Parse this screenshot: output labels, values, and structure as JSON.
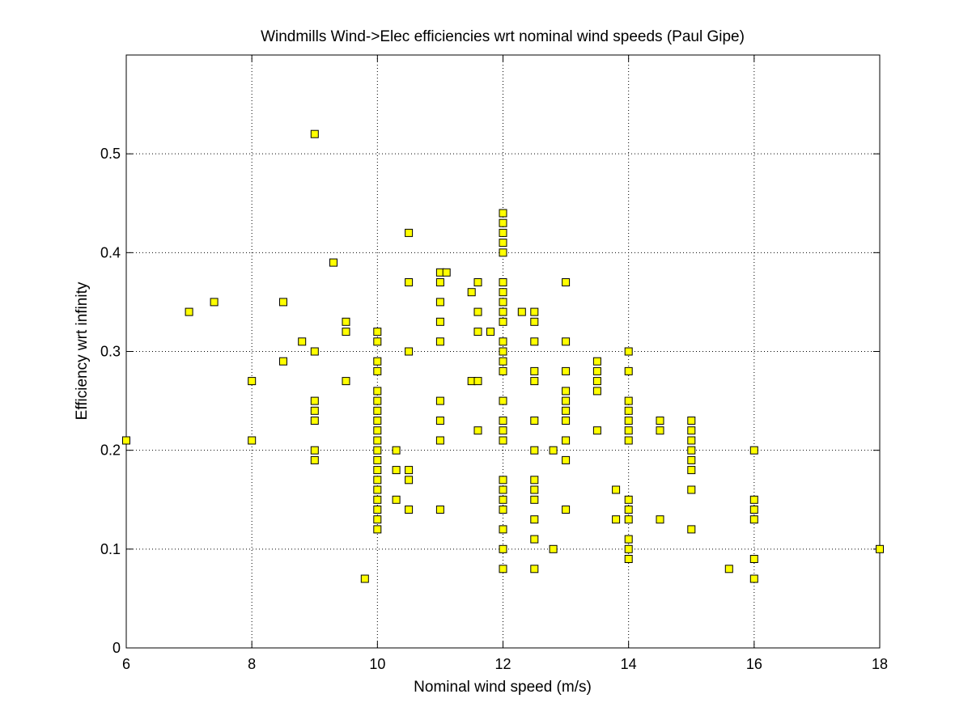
{
  "chart_data": {
    "type": "scatter",
    "title": "Windmills Wind->Elec efficiencies wrt nominal wind speeds (Paul Gipe)",
    "xlabel": "Nominal wind speed (m/s)",
    "ylabel": "Efficiency wrt infinity",
    "xlim": [
      6,
      18
    ],
    "ylim": [
      0,
      0.6
    ],
    "xticks": [
      "6",
      "8",
      "10",
      "12",
      "14",
      "16",
      "18"
    ],
    "yticks": [
      "0",
      "0.1",
      "0.2",
      "0.3",
      "0.4",
      "0.5"
    ],
    "grid": true,
    "marker": "square",
    "marker_color": "#ffff00",
    "marker_edge": "#000000",
    "points": [
      [
        6,
        0.21
      ],
      [
        7,
        0.34
      ],
      [
        7.4,
        0.35
      ],
      [
        8,
        0.27
      ],
      [
        8,
        0.21
      ],
      [
        8.5,
        0.35
      ],
      [
        8.5,
        0.29
      ],
      [
        8.8,
        0.31
      ],
      [
        9,
        0.52
      ],
      [
        9,
        0.3
      ],
      [
        9,
        0.25
      ],
      [
        9,
        0.24
      ],
      [
        9,
        0.23
      ],
      [
        9,
        0.2
      ],
      [
        9,
        0.19
      ],
      [
        9.3,
        0.39
      ],
      [
        9.5,
        0.33
      ],
      [
        9.5,
        0.32
      ],
      [
        9.5,
        0.27
      ],
      [
        9.8,
        0.07
      ],
      [
        10,
        0.32
      ],
      [
        10,
        0.31
      ],
      [
        10,
        0.29
      ],
      [
        10,
        0.28
      ],
      [
        10,
        0.26
      ],
      [
        10,
        0.25
      ],
      [
        10,
        0.24
      ],
      [
        10,
        0.23
      ],
      [
        10,
        0.22
      ],
      [
        10,
        0.21
      ],
      [
        10,
        0.2
      ],
      [
        10,
        0.19
      ],
      [
        10,
        0.18
      ],
      [
        10,
        0.17
      ],
      [
        10,
        0.16
      ],
      [
        10,
        0.15
      ],
      [
        10,
        0.14
      ],
      [
        10,
        0.13
      ],
      [
        10,
        0.12
      ],
      [
        10.3,
        0.2
      ],
      [
        10.3,
        0.18
      ],
      [
        10.3,
        0.15
      ],
      [
        10.5,
        0.42
      ],
      [
        10.5,
        0.37
      ],
      [
        10.5,
        0.3
      ],
      [
        10.5,
        0.18
      ],
      [
        10.5,
        0.17
      ],
      [
        10.5,
        0.14
      ],
      [
        11,
        0.38
      ],
      [
        11,
        0.37
      ],
      [
        11,
        0.35
      ],
      [
        11,
        0.33
      ],
      [
        11,
        0.31
      ],
      [
        11,
        0.25
      ],
      [
        11,
        0.23
      ],
      [
        11,
        0.21
      ],
      [
        11,
        0.14
      ],
      [
        11.1,
        0.38
      ],
      [
        11.5,
        0.36
      ],
      [
        11.5,
        0.27
      ],
      [
        11.6,
        0.37
      ],
      [
        11.6,
        0.34
      ],
      [
        11.6,
        0.32
      ],
      [
        11.6,
        0.27
      ],
      [
        11.6,
        0.22
      ],
      [
        11.8,
        0.32
      ],
      [
        12,
        0.44
      ],
      [
        12,
        0.43
      ],
      [
        12,
        0.42
      ],
      [
        12,
        0.41
      ],
      [
        12,
        0.4
      ],
      [
        12,
        0.37
      ],
      [
        12,
        0.36
      ],
      [
        12,
        0.35
      ],
      [
        12,
        0.34
      ],
      [
        12,
        0.33
      ],
      [
        12,
        0.31
      ],
      [
        12,
        0.3
      ],
      [
        12,
        0.29
      ],
      [
        12,
        0.28
      ],
      [
        12,
        0.25
      ],
      [
        12,
        0.23
      ],
      [
        12,
        0.22
      ],
      [
        12,
        0.21
      ],
      [
        12,
        0.17
      ],
      [
        12,
        0.16
      ],
      [
        12,
        0.15
      ],
      [
        12,
        0.14
      ],
      [
        12,
        0.12
      ],
      [
        12,
        0.1
      ],
      [
        12,
        0.08
      ],
      [
        12.3,
        0.34
      ],
      [
        12.5,
        0.34
      ],
      [
        12.5,
        0.33
      ],
      [
        12.5,
        0.31
      ],
      [
        12.5,
        0.28
      ],
      [
        12.5,
        0.27
      ],
      [
        12.5,
        0.23
      ],
      [
        12.5,
        0.2
      ],
      [
        12.5,
        0.17
      ],
      [
        12.5,
        0.16
      ],
      [
        12.5,
        0.15
      ],
      [
        12.5,
        0.13
      ],
      [
        12.5,
        0.11
      ],
      [
        12.5,
        0.08
      ],
      [
        12.8,
        0.2
      ],
      [
        12.8,
        0.1
      ],
      [
        13,
        0.37
      ],
      [
        13,
        0.31
      ],
      [
        13,
        0.28
      ],
      [
        13,
        0.26
      ],
      [
        13,
        0.25
      ],
      [
        13,
        0.24
      ],
      [
        13,
        0.23
      ],
      [
        13,
        0.21
      ],
      [
        13,
        0.19
      ],
      [
        13,
        0.14
      ],
      [
        13.5,
        0.29
      ],
      [
        13.5,
        0.28
      ],
      [
        13.5,
        0.27
      ],
      [
        13.5,
        0.26
      ],
      [
        13.5,
        0.22
      ],
      [
        13.8,
        0.16
      ],
      [
        13.8,
        0.13
      ],
      [
        14,
        0.3
      ],
      [
        14,
        0.28
      ],
      [
        14,
        0.25
      ],
      [
        14,
        0.24
      ],
      [
        14,
        0.23
      ],
      [
        14,
        0.22
      ],
      [
        14,
        0.21
      ],
      [
        14,
        0.15
      ],
      [
        14,
        0.14
      ],
      [
        14,
        0.13
      ],
      [
        14,
        0.11
      ],
      [
        14,
        0.1
      ],
      [
        14,
        0.09
      ],
      [
        14.5,
        0.23
      ],
      [
        14.5,
        0.22
      ],
      [
        14.5,
        0.13
      ],
      [
        15,
        0.23
      ],
      [
        15,
        0.22
      ],
      [
        15,
        0.21
      ],
      [
        15,
        0.2
      ],
      [
        15,
        0.19
      ],
      [
        15,
        0.18
      ],
      [
        15,
        0.16
      ],
      [
        15,
        0.12
      ],
      [
        15.6,
        0.08
      ],
      [
        16,
        0.2
      ],
      [
        16,
        0.15
      ],
      [
        16,
        0.14
      ],
      [
        16,
        0.13
      ],
      [
        16,
        0.09
      ],
      [
        16,
        0.07
      ],
      [
        18,
        0.1
      ]
    ]
  }
}
